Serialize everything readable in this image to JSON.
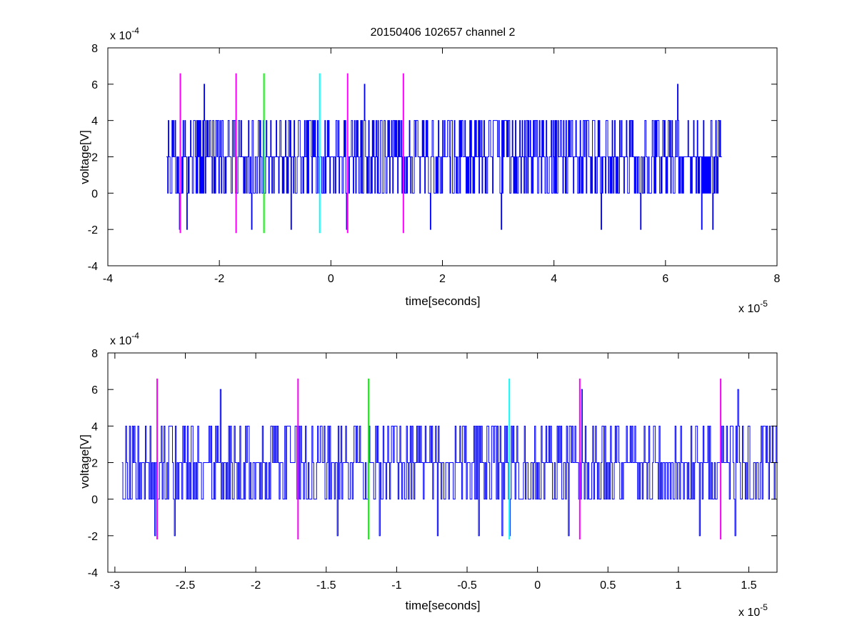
{
  "chart_data": [
    {
      "type": "line",
      "title": "20150406 102657 channel 2",
      "xlabel": "time[seconds]",
      "ylabel": "voltage[V]",
      "x_exponent_label": "x 10",
      "x_exponent": "-5",
      "y_exponent_label": "x 10",
      "y_exponent": "-4",
      "xlim": [
        -4,
        8
      ],
      "ylim": [
        -4,
        8
      ],
      "xticks": [
        -4,
        -2,
        0,
        2,
        4,
        6,
        8
      ],
      "xtick_labels": [
        "-4",
        "-2",
        "0",
        "2",
        "4",
        "6",
        "8"
      ],
      "yticks": [
        -4,
        -2,
        0,
        2,
        4,
        6,
        8
      ],
      "ytick_labels": [
        "-4",
        "-2",
        "0",
        "2",
        "4",
        "6",
        "8"
      ],
      "grid": false,
      "series": [
        {
          "color": "#0000ff",
          "x_range": [
            -2.95,
            7.0
          ],
          "levels": [
            -2,
            0,
            2,
            4,
            6
          ],
          "baseline": 2,
          "spikes": [
            {
              "x": -2.72,
              "y": -2
            },
            {
              "x": -2.28,
              "y": 6
            },
            {
              "x": -2.58,
              "y": -2
            },
            {
              "x": -1.42,
              "y": -2
            },
            {
              "x": -0.72,
              "y": -2
            },
            {
              "x": 0.28,
              "y": -2
            },
            {
              "x": 0.6,
              "y": 6
            },
            {
              "x": 1.78,
              "y": -2
            },
            {
              "x": 3.05,
              "y": -2
            },
            {
              "x": 4.85,
              "y": -2
            },
            {
              "x": 5.55,
              "y": -2
            },
            {
              "x": 6.22,
              "y": 6
            },
            {
              "x": 6.65,
              "y": -2
            },
            {
              "x": 6.85,
              "y": -2
            }
          ]
        }
      ],
      "markers": [
        {
          "x": -2.7,
          "color": "#ff00ff"
        },
        {
          "x": -1.7,
          "color": "#ff00ff"
        },
        {
          "x": -1.2,
          "color": "#00ff00"
        },
        {
          "x": -0.2,
          "color": "#00ffff"
        },
        {
          "x": 0.3,
          "color": "#ff00ff"
        },
        {
          "x": 1.3,
          "color": "#ff00ff"
        }
      ],
      "marker_y_range": [
        -2.2,
        6.6
      ]
    },
    {
      "type": "line",
      "title": "",
      "xlabel": "time[seconds]",
      "ylabel": "voltage[V]",
      "x_exponent_label": "x 10",
      "x_exponent": "-5",
      "y_exponent_label": "x 10",
      "y_exponent": "-4",
      "xlim": [
        -3.05,
        1.7
      ],
      "ylim": [
        -4,
        8
      ],
      "xticks": [
        -3,
        -2.5,
        -2,
        -1.5,
        -1,
        -0.5,
        0,
        0.5,
        1,
        1.5
      ],
      "xtick_labels": [
        "-3",
        "-2.5",
        "-2",
        "-1.5",
        "-1",
        "-0.5",
        "0",
        "0.5",
        "1",
        "1.5"
      ],
      "yticks": [
        -4,
        -2,
        0,
        2,
        4,
        6,
        8
      ],
      "ytick_labels": [
        "-4",
        "-2",
        "0",
        "2",
        "4",
        "6",
        "8"
      ],
      "grid": false,
      "series": [
        {
          "color": "#0000ff",
          "x_range": [
            -2.95,
            1.7
          ],
          "levels": [
            -2,
            0,
            2,
            4,
            6
          ],
          "baseline": 2,
          "spikes": [
            {
              "x": -2.72,
              "y": -2
            },
            {
              "x": -2.58,
              "y": -2
            },
            {
              "x": -2.25,
              "y": 6
            },
            {
              "x": -1.42,
              "y": -2
            },
            {
              "x": -1.12,
              "y": -2
            },
            {
              "x": -0.71,
              "y": -2
            },
            {
              "x": -0.42,
              "y": -2
            },
            {
              "x": -0.25,
              "y": -2
            },
            {
              "x": -0.2,
              "y": -2
            },
            {
              "x": 0.22,
              "y": -2
            },
            {
              "x": 0.31,
              "y": 6
            },
            {
              "x": 1.15,
              "y": -2
            },
            {
              "x": 1.4,
              "y": -2
            },
            {
              "x": 1.42,
              "y": 6
            }
          ]
        }
      ],
      "markers": [
        {
          "x": -2.7,
          "color": "#ff00ff"
        },
        {
          "x": -1.7,
          "color": "#ff00ff"
        },
        {
          "x": -1.2,
          "color": "#00ff00"
        },
        {
          "x": -0.2,
          "color": "#00ffff"
        },
        {
          "x": 0.3,
          "color": "#ff00ff"
        },
        {
          "x": 1.3,
          "color": "#ff00ff"
        }
      ],
      "marker_y_range": [
        -2.2,
        6.6
      ]
    }
  ]
}
